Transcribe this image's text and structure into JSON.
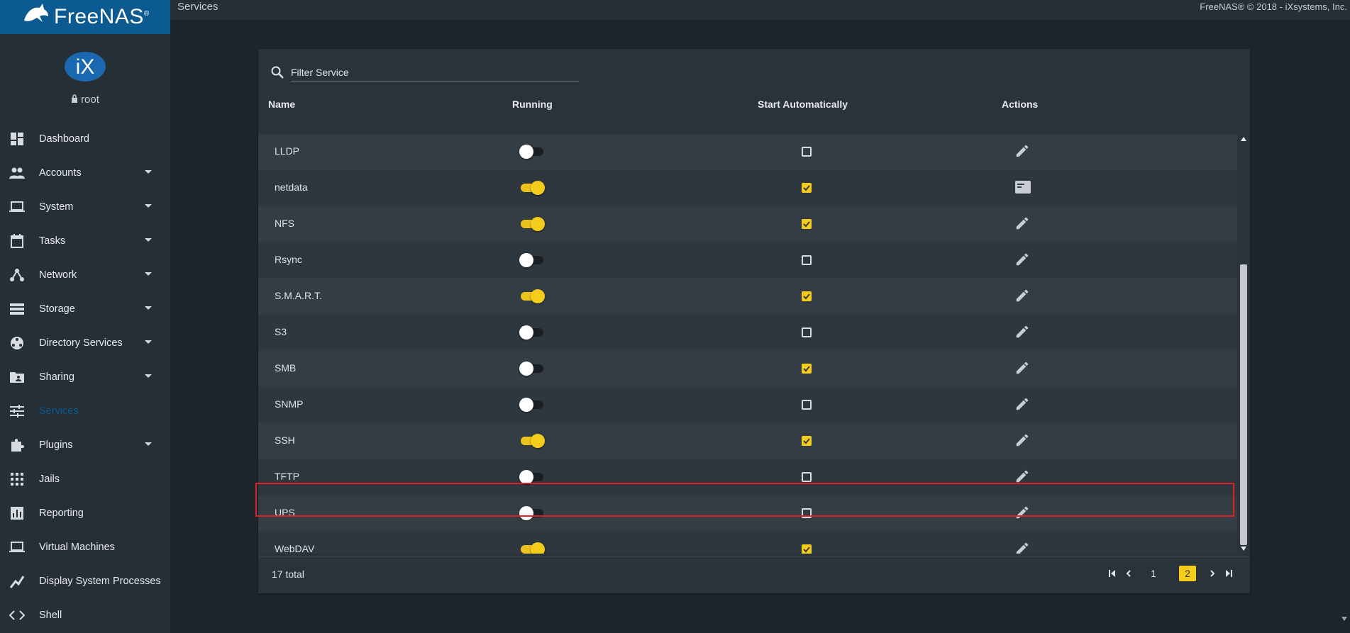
{
  "app": {
    "brand": "FreeNAS",
    "brand_mark": "®",
    "profile_logo_text": "iX",
    "user": "root"
  },
  "topbar": {
    "page_title": "Services",
    "copyright": "FreeNAS® © 2018 - iXsystems, Inc."
  },
  "sidebar": {
    "items": [
      {
        "label": "Dashboard",
        "icon": "dashboard-icon",
        "has_children": false
      },
      {
        "label": "Accounts",
        "icon": "people-icon",
        "has_children": true
      },
      {
        "label": "System",
        "icon": "laptop-icon",
        "has_children": true
      },
      {
        "label": "Tasks",
        "icon": "calendar-icon",
        "has_children": true
      },
      {
        "label": "Network",
        "icon": "network-icon",
        "has_children": true
      },
      {
        "label": "Storage",
        "icon": "storage-icon",
        "has_children": true
      },
      {
        "label": "Directory Services",
        "icon": "directory-icon",
        "has_children": true
      },
      {
        "label": "Sharing",
        "icon": "shared-folder-icon",
        "has_children": true
      },
      {
        "label": "Services",
        "icon": "tune-icon",
        "has_children": false,
        "active": true
      },
      {
        "label": "Plugins",
        "icon": "puzzle-icon",
        "has_children": true
      },
      {
        "label": "Jails",
        "icon": "apps-grid-icon",
        "has_children": false
      },
      {
        "label": "Reporting",
        "icon": "bar-chart-icon",
        "has_children": false
      },
      {
        "label": "Virtual Machines",
        "icon": "laptop-icon",
        "has_children": false
      },
      {
        "label": "Display System Processes",
        "icon": "pulse-icon",
        "has_children": false
      },
      {
        "label": "Shell",
        "icon": "code-icon",
        "has_children": false
      }
    ]
  },
  "services_table": {
    "search_placeholder": "Filter Service",
    "columns": {
      "name": "Name",
      "running": "Running",
      "start_automatically": "Start Automatically",
      "actions": "Actions"
    },
    "rows": [
      {
        "name": "LLDP",
        "running": false,
        "start_auto": false,
        "action_icon": "edit-icon"
      },
      {
        "name": "netdata",
        "running": true,
        "start_auto": true,
        "action_icon": "web-ui-icon"
      },
      {
        "name": "NFS",
        "running": true,
        "start_auto": true,
        "action_icon": "edit-icon"
      },
      {
        "name": "Rsync",
        "running": false,
        "start_auto": false,
        "action_icon": "edit-icon"
      },
      {
        "name": "S.M.A.R.T.",
        "running": true,
        "start_auto": true,
        "action_icon": "edit-icon"
      },
      {
        "name": "S3",
        "running": false,
        "start_auto": false,
        "action_icon": "edit-icon"
      },
      {
        "name": "SMB",
        "running": false,
        "start_auto": true,
        "action_icon": "edit-icon"
      },
      {
        "name": "SNMP",
        "running": false,
        "start_auto": false,
        "action_icon": "edit-icon"
      },
      {
        "name": "SSH",
        "running": true,
        "start_auto": true,
        "action_icon": "edit-icon"
      },
      {
        "name": "TFTP",
        "running": false,
        "start_auto": false,
        "action_icon": "edit-icon"
      },
      {
        "name": "UPS",
        "running": false,
        "start_auto": false,
        "action_icon": "edit-icon",
        "highlighted": true
      },
      {
        "name": "WebDAV",
        "running": true,
        "start_auto": true,
        "action_icon": "edit-icon"
      }
    ],
    "total_label": "17 total",
    "pagination": {
      "pages": [
        "1",
        "2"
      ],
      "current": "2"
    }
  },
  "colors": {
    "accent_yellow": "#f4cc1b",
    "brand_blue": "#0b5a91",
    "highlight_red": "#d9232a"
  }
}
